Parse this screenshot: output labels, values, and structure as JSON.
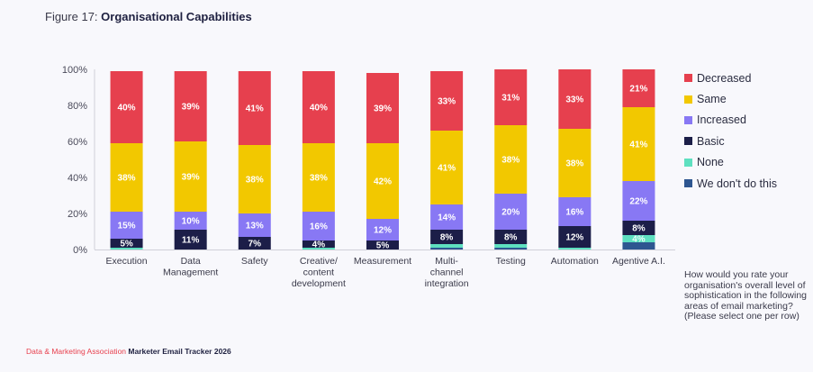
{
  "header": {
    "figure_label": "Figure 17:",
    "title": "Organisational Capabilities"
  },
  "question": "How would you rate your organisation's overall level of sophistication in the following areas of email marketing? (Please select one per row)",
  "footer": {
    "org": "Data & Marketing Association",
    "tracker": "Marketer Email Tracker 2026"
  },
  "chart_data": {
    "type": "bar",
    "stacked": true,
    "title": "Organisational Capabilities",
    "xlabel": "",
    "ylabel": "",
    "ylim": [
      0,
      100
    ],
    "yticks": [
      "0%",
      "20%",
      "40%",
      "60%",
      "80%",
      "100%"
    ],
    "grid": false,
    "legend_position": "right",
    "categories": [
      [
        "Execution"
      ],
      [
        "Data",
        "Management"
      ],
      [
        "Safety"
      ],
      [
        "Creative/",
        "content",
        "development"
      ],
      [
        "Measurement"
      ],
      [
        "Multi-",
        "channel",
        "integration"
      ],
      [
        "Testing"
      ],
      [
        "Automation"
      ],
      [
        "Agentive A.I."
      ]
    ],
    "series": [
      {
        "name": "We don't do this",
        "color": "#2e5690",
        "values": [
          0,
          0,
          0,
          0,
          0,
          1,
          1,
          0,
          4
        ],
        "labeled": [
          false,
          false,
          false,
          false,
          false,
          false,
          false,
          false,
          false
        ]
      },
      {
        "name": "None",
        "color": "#5ee0c0",
        "values": [
          1,
          0,
          0,
          1,
          0,
          2,
          2,
          1,
          4
        ],
        "labeled": [
          false,
          false,
          false,
          false,
          false,
          false,
          false,
          false,
          true
        ]
      },
      {
        "name": "Basic",
        "color": "#1c1e48",
        "values": [
          5,
          11,
          7,
          4,
          5,
          8,
          8,
          12,
          8
        ],
        "labeled": [
          true,
          true,
          true,
          true,
          true,
          true,
          true,
          true,
          true
        ]
      },
      {
        "name": "Increased",
        "color": "#8878f4",
        "values": [
          15,
          10,
          13,
          16,
          12,
          14,
          20,
          16,
          22
        ],
        "labeled": [
          true,
          true,
          true,
          true,
          true,
          true,
          true,
          true,
          true
        ]
      },
      {
        "name": "Same",
        "color": "#f2c800",
        "values": [
          38,
          39,
          38,
          38,
          42,
          41,
          38,
          38,
          41
        ],
        "labeled": [
          true,
          true,
          true,
          true,
          true,
          true,
          true,
          true,
          true
        ]
      },
      {
        "name": "Decreased",
        "color": "#e6404e",
        "values": [
          40,
          39,
          41,
          40,
          39,
          33,
          31,
          33,
          21
        ],
        "labeled": [
          true,
          true,
          true,
          true,
          true,
          true,
          true,
          true,
          true
        ]
      }
    ],
    "legend_order": [
      "Decreased",
      "Same",
      "Increased",
      "Basic",
      "None",
      "We don't do this"
    ]
  }
}
